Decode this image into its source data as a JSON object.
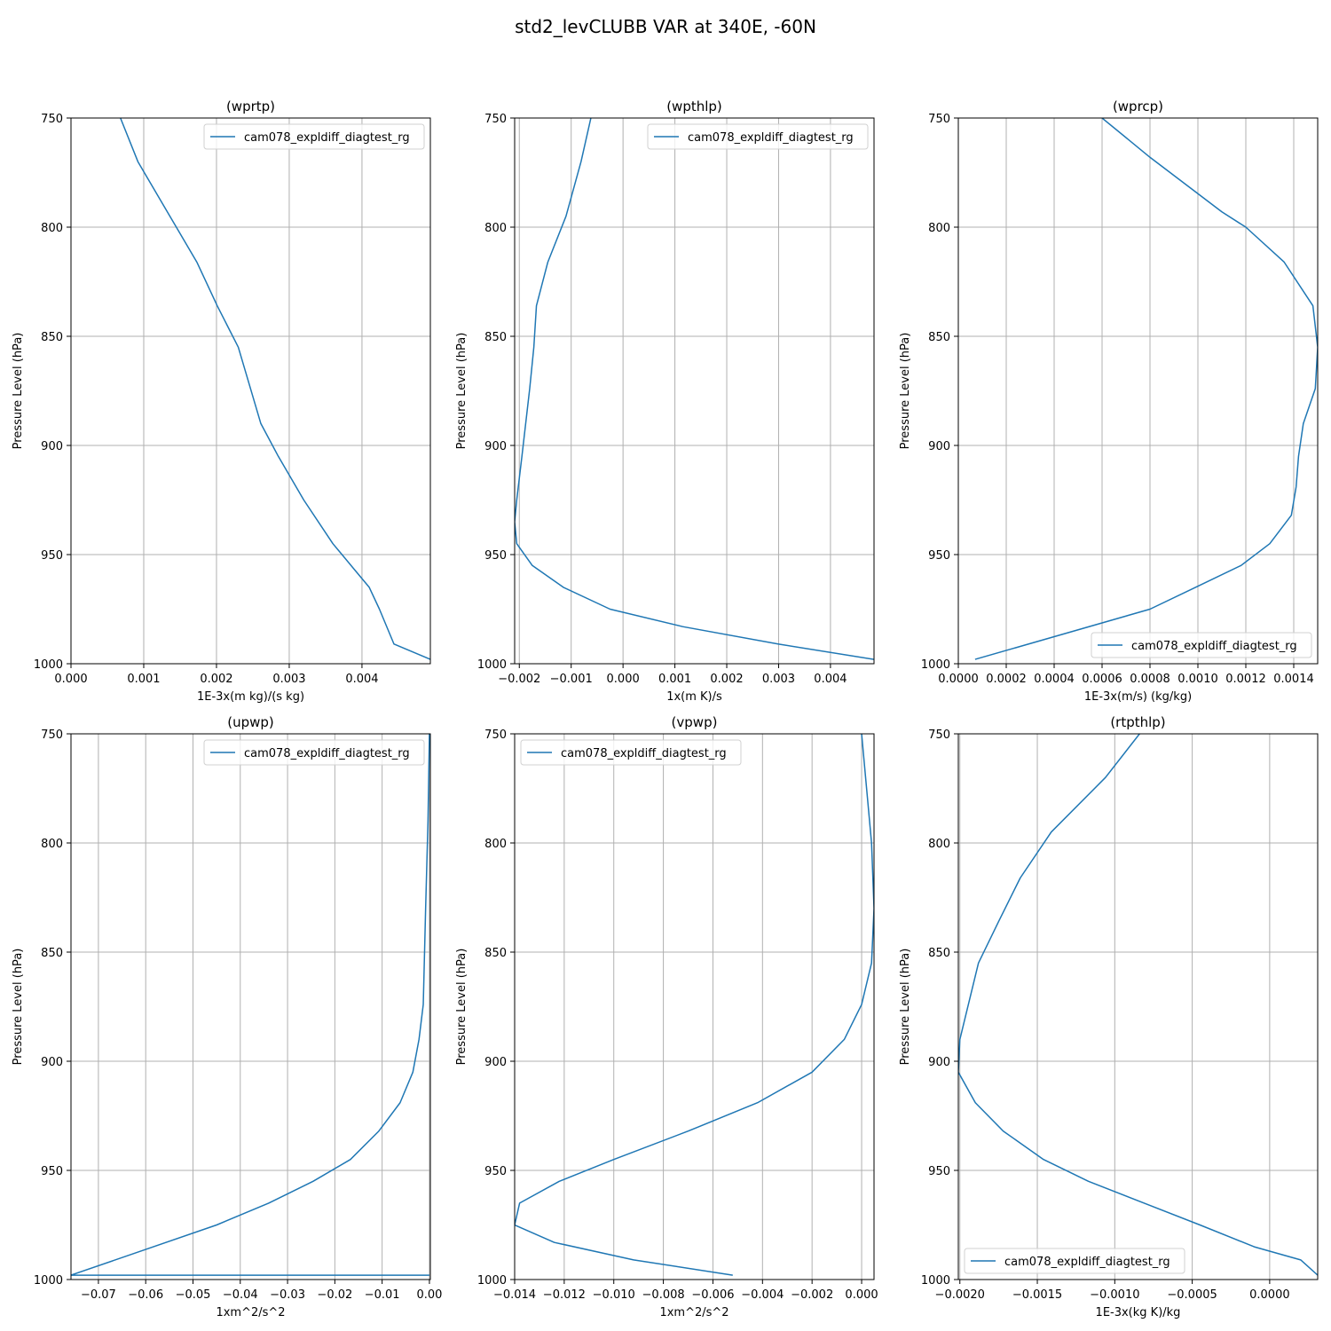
{
  "figure": {
    "title": "std2_levCLUBB VAR at 340E, -60N"
  },
  "colors": {
    "series": "#1f77b4",
    "grid": "#b0b0b0",
    "axes": "#000000",
    "legend_border": "#d0d0d0"
  },
  "chart_data": [
    {
      "type": "line",
      "title": "(wprtp)",
      "xlabel": "1E-3x(m kg)/(s kg)",
      "ylabel": "Pressure Level (hPa)",
      "xlim": [
        0,
        0.00494
      ],
      "ylim": [
        1000,
        750
      ],
      "xticks": [
        0,
        0.001,
        0.002,
        0.003,
        0.004
      ],
      "xtick_labels": [
        "0.000",
        "0.001",
        "0.002",
        "0.003",
        "0.004"
      ],
      "yticks": [
        750,
        800,
        850,
        900,
        950,
        1000
      ],
      "ytick_labels": [
        "750",
        "800",
        "850",
        "900",
        "950",
        "1000"
      ],
      "grid": true,
      "legend_position": "upper right",
      "series": [
        {
          "name": "cam078_expldiff_diagtest_rg",
          "x": [
            0.00068,
            0.00092,
            0.00136,
            0.00173,
            0.00201,
            0.0023,
            0.00261,
            0.00285,
            0.0032,
            0.0036,
            0.0039,
            0.0041,
            0.00424,
            0.00444,
            0.00494
          ],
          "y": [
            750,
            770,
            795,
            816,
            836,
            855,
            890,
            905,
            925,
            945,
            957,
            965,
            975,
            991,
            998
          ]
        }
      ]
    },
    {
      "type": "line",
      "title": "(wpthlp)",
      "xlabel": "1x(m K)/s",
      "ylabel": "Pressure Level (hPa)",
      "xlim": [
        -0.00209,
        0.00484
      ],
      "ylim": [
        1000,
        750
      ],
      "xticks": [
        -0.002,
        -0.001,
        0,
        0.001,
        0.002,
        0.003,
        0.004
      ],
      "xtick_labels": [
        "−0.002",
        "−0.001",
        "0.000",
        "0.001",
        "0.002",
        "0.003",
        "0.004"
      ],
      "yticks": [
        750,
        800,
        850,
        900,
        950,
        1000
      ],
      "ytick_labels": [
        "750",
        "800",
        "850",
        "900",
        "950",
        "1000"
      ],
      "grid": true,
      "legend_position": "upper right",
      "series": [
        {
          "name": "cam078_expldiff_diagtest_rg",
          "x": [
            -0.00062,
            -0.00081,
            -0.0011,
            -0.00145,
            -0.00167,
            -0.00172,
            -0.0018,
            -0.00195,
            -0.00205,
            -0.00209,
            -0.00205,
            -0.00175,
            -0.00115,
            -0.00025,
            0.00115,
            0.003,
            0.00484
          ],
          "y": [
            750,
            770,
            795,
            816,
            836,
            855,
            874,
            905,
            925,
            935,
            945,
            955,
            965,
            975,
            983,
            991,
            998
          ]
        }
      ]
    },
    {
      "type": "line",
      "title": "(wprcp)",
      "xlabel": "1E-3x(m/s) (kg/kg)",
      "ylabel": "Pressure Level (hPa)",
      "xlim": [
        0,
        0.0015
      ],
      "ylim": [
        1000,
        750
      ],
      "xticks": [
        0,
        0.0002,
        0.0004,
        0.0006,
        0.0008,
        0.001,
        0.0012,
        0.0014
      ],
      "xtick_labels": [
        "0.0000",
        "0.0002",
        "0.0004",
        "0.0006",
        "0.0008",
        "0.0010",
        "0.0012",
        "0.0014"
      ],
      "yticks": [
        750,
        800,
        850,
        900,
        950,
        1000
      ],
      "ytick_labels": [
        "750",
        "800",
        "850",
        "900",
        "950",
        "1000"
      ],
      "grid": true,
      "legend_position": "lower right",
      "series": [
        {
          "name": "cam078_expldiff_diagtest_rg",
          "x": [
            0.0006,
            0.0008,
            0.0011,
            0.0012,
            0.00136,
            0.00148,
            0.0015,
            0.00149,
            0.00144,
            0.00142,
            0.00141,
            0.00139,
            0.0013,
            0.00118,
            0.00099,
            0.0008,
            7e-05
          ],
          "y": [
            750,
            768,
            793,
            800,
            816,
            836,
            855,
            874,
            890,
            905,
            919,
            932,
            945,
            955,
            965,
            975,
            998
          ]
        }
      ]
    },
    {
      "type": "line",
      "title": "(upwp)",
      "xlabel": "1xm^2/s^2",
      "ylabel": "Pressure Level (hPa)",
      "xlim": [
        -0.0758,
        0.0002
      ],
      "ylim": [
        1000,
        750
      ],
      "xticks": [
        -0.07,
        -0.06,
        -0.05,
        -0.04,
        -0.03,
        -0.02,
        -0.01,
        0
      ],
      "xtick_labels": [
        "−0.07",
        "−0.06",
        "−0.05",
        "−0.04",
        "−0.03",
        "−0.02",
        "−0.01",
        "0.00"
      ],
      "yticks": [
        750,
        800,
        850,
        900,
        950,
        1000
      ],
      "ytick_labels": [
        "750",
        "800",
        "850",
        "900",
        "950",
        "1000"
      ],
      "grid": true,
      "legend_position": "upper right",
      "series": [
        {
          "name": "cam078_expldiff_diagtest_rg",
          "x": [
            0.0,
            -0.0003,
            -0.0008,
            -0.0013,
            -0.0022,
            -0.0035,
            -0.0062,
            -0.0107,
            -0.0167,
            -0.0246,
            -0.034,
            -0.045,
            -0.0758,
            0.0
          ],
          "y": [
            750,
            790,
            830,
            874,
            890,
            905,
            919,
            932,
            945,
            955,
            965,
            975,
            998,
            998
          ]
        }
      ]
    },
    {
      "type": "line",
      "title": "(vpwp)",
      "xlabel": "1xm^2/s^2",
      "ylabel": "Pressure Level (hPa)",
      "xlim": [
        -0.014,
        0.0005
      ],
      "ylim": [
        1000,
        750
      ],
      "xticks": [
        -0.014,
        -0.012,
        -0.01,
        -0.008,
        -0.006,
        -0.004,
        -0.002,
        0
      ],
      "xtick_labels": [
        "−0.014",
        "−0.012",
        "−0.010",
        "−0.008",
        "−0.006",
        "−0.004",
        "−0.002",
        "0.000"
      ],
      "yticks": [
        750,
        800,
        850,
        900,
        950,
        1000
      ],
      "ytick_labels": [
        "750",
        "800",
        "850",
        "900",
        "950",
        "1000"
      ],
      "grid": true,
      "legend_position": "upper left",
      "series": [
        {
          "name": "cam078_expldiff_diagtest_rg",
          "x": [
            0.0,
            0.0004,
            0.0005,
            0.0004,
            0.0,
            -0.0007,
            -0.002,
            -0.0042,
            -0.007,
            -0.01,
            -0.0122,
            -0.0138,
            -0.014,
            -0.0124,
            -0.0092,
            -0.0052
          ],
          "y": [
            750,
            800,
            830,
            855,
            874,
            890,
            905,
            919,
            932,
            945,
            955,
            965,
            975,
            983,
            991,
            998
          ]
        }
      ]
    },
    {
      "type": "line",
      "title": "(rtpthlp)",
      "xlabel": "1E-3x(kg K)/kg",
      "ylabel": "Pressure Level (hPa)",
      "xlim": [
        -0.00201,
        0.00031
      ],
      "ylim": [
        1000,
        750
      ],
      "xticks": [
        -0.002,
        -0.0015,
        -0.001,
        -0.0005,
        0
      ],
      "xtick_labels": [
        "−0.0020",
        "−0.0015",
        "−0.0010",
        "−0.0005",
        "0.0000"
      ],
      "yticks": [
        750,
        800,
        850,
        900,
        950,
        1000
      ],
      "ytick_labels": [
        "750",
        "800",
        "850",
        "900",
        "950",
        "1000"
      ],
      "grid": true,
      "legend_position": "lower left",
      "series": [
        {
          "name": "cam078_expldiff_diagtest_rg",
          "x": [
            -0.00084,
            -0.00106,
            -0.00141,
            -0.00161,
            -0.00175,
            -0.00188,
            -0.002,
            -0.00201,
            -0.0019,
            -0.00172,
            -0.00146,
            -0.00117,
            -0.00081,
            -0.00045,
            -0.0001,
            0.0002,
            0.00031
          ],
          "y": [
            750,
            770,
            795,
            816,
            836,
            855,
            890,
            905,
            919,
            932,
            945,
            955,
            965,
            975,
            985,
            991,
            998
          ]
        }
      ]
    }
  ]
}
